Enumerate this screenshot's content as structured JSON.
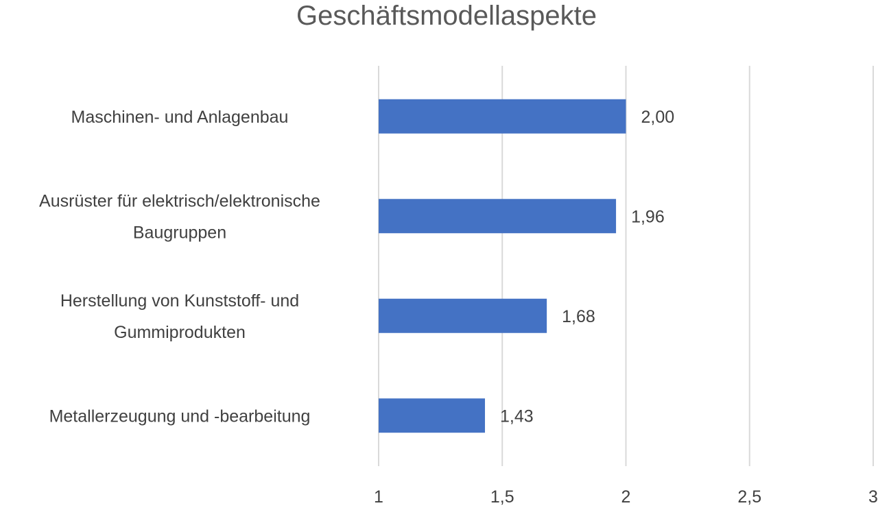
{
  "chart_data": {
    "type": "bar",
    "orientation": "horizontal",
    "title": "Geschäftsmodellaspekte",
    "xlabel": "",
    "ylabel": "",
    "categories": [
      [
        "Maschinen- und Anlagenbau"
      ],
      [
        "Ausrüster für elektrisch/elektronische",
        "Baugruppen"
      ],
      [
        "Herstellung von Kunststoff- und",
        "Gummiprodukten"
      ],
      [
        "Metallerzeugung und -bearbeitung"
      ]
    ],
    "values": [
      2.0,
      1.96,
      1.68,
      1.43
    ],
    "value_labels": [
      "2,00",
      "1,96",
      "1,68",
      "1,43"
    ],
    "xlim": [
      1,
      3
    ],
    "xticks": [
      1,
      1.5,
      2,
      2.5,
      3
    ],
    "xtick_labels": [
      "1",
      "1,5",
      "2",
      "2,5",
      "3"
    ],
    "grid": true,
    "legend": "none",
    "bar_color": "#4472c4"
  }
}
